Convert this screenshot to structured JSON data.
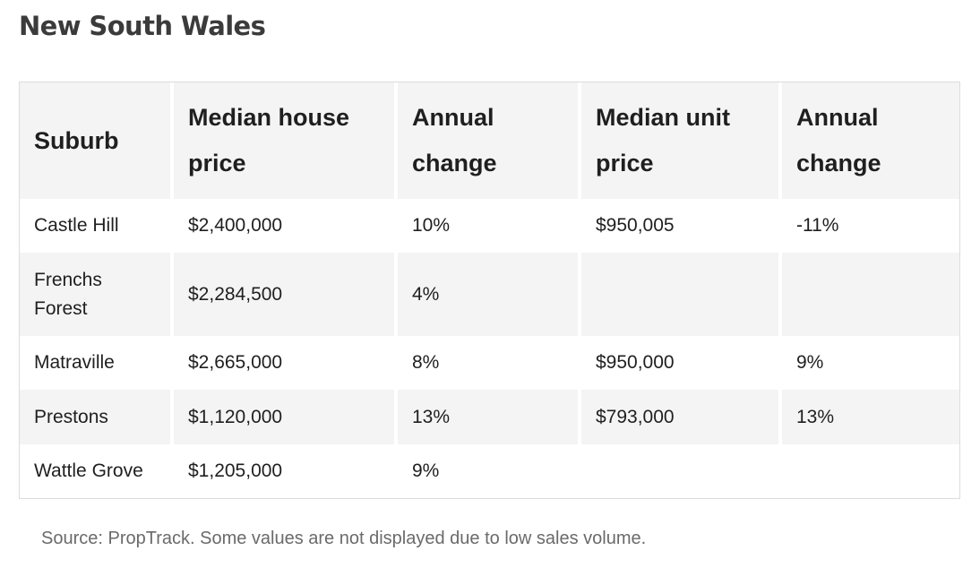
{
  "title": "New South Wales",
  "table": {
    "headers": [
      "Suburb",
      "Median house price",
      "Annual change",
      "Median unit price",
      "Annual change"
    ],
    "rows": [
      [
        "Castle Hill",
        "$2,400,000",
        "10%",
        "$950,005",
        "-11%"
      ],
      [
        "Frenchs Forest",
        "$2,284,500",
        "4%",
        "",
        ""
      ],
      [
        "Matraville",
        "$2,665,000",
        "8%",
        "$950,000",
        "9%"
      ],
      [
        "Prestons",
        "$1,120,000",
        "13%",
        "$793,000",
        "13%"
      ],
      [
        "Wattle Grove",
        "$1,205,000",
        "9%",
        "",
        ""
      ]
    ]
  },
  "source": "Source: PropTrack. Some values are not displayed due to low sales volume."
}
